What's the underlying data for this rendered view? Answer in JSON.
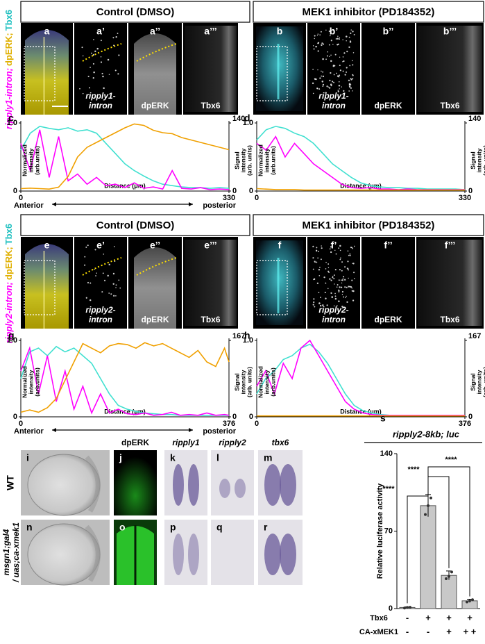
{
  "figure": {
    "headers": [
      "Control (DMSO)",
      "MEK1 inhibitor (PD184352)",
      "Control (DMSO)",
      "MEK1 inhibitor (PD184352)"
    ],
    "stain_labels": [
      [
        "ripply1-intron;",
        "dpERK;",
        "Tbx6"
      ],
      [
        "ripply2-intron;",
        "dpERK;",
        "Tbx6"
      ]
    ],
    "image_panels": [
      {
        "label": "a",
        "caption": []
      },
      {
        "label": "a’",
        "caption": [
          "ripply1-",
          "intron"
        ]
      },
      {
        "label": "a’’",
        "caption": [
          "dpERK"
        ]
      },
      {
        "label": "a’’’",
        "caption": [
          "Tbx6"
        ]
      },
      {
        "label": "b",
        "caption": []
      },
      {
        "label": "b’",
        "caption": [
          "ripply1-",
          "intron"
        ]
      },
      {
        "label": "b’’",
        "caption": [
          "dpERK"
        ]
      },
      {
        "label": "b’’’",
        "caption": [
          "Tbx6"
        ]
      },
      {
        "label": "e",
        "caption": []
      },
      {
        "label": "e’",
        "caption": [
          "ripply2-",
          "intron"
        ]
      },
      {
        "label": "e’’",
        "caption": [
          "dpERK"
        ]
      },
      {
        "label": "e’’’",
        "caption": [
          "Tbx6"
        ]
      },
      {
        "label": "f",
        "caption": []
      },
      {
        "label": "f’",
        "caption": [
          "ripply2-",
          "intron"
        ]
      },
      {
        "label": "f’’",
        "caption": [
          "dpERK"
        ]
      },
      {
        "label": "f’’’",
        "caption": [
          "Tbx6"
        ]
      }
    ],
    "bottom_panels": [
      "i",
      "j",
      "k",
      "l",
      "m",
      "n",
      "o",
      "p",
      "q",
      "r"
    ],
    "column_labels": [
      "dpERK",
      "ripply1",
      "ripply2",
      "tbx6"
    ],
    "row_labels": [
      [
        "WT"
      ],
      [
        "msgn1;gal4",
        "/ uas;ca-xmek1"
      ]
    ],
    "chart_labels": [
      "c",
      "d",
      "g",
      "h",
      "s"
    ]
  },
  "chart_data": [
    {
      "type": "line",
      "xlabel": "Distance (μm)",
      "ylabel": [
        "Normalized",
        "intensity",
        "(arb.units)"
      ],
      "y2label": [
        "Signal",
        "intensity",
        "(arb. units)"
      ],
      "annotations": [
        "Anterior",
        "posterior"
      ],
      "x": [
        0,
        15,
        30,
        45,
        60,
        75,
        90,
        105,
        120,
        135,
        150,
        165,
        180,
        195,
        210,
        225,
        240,
        255,
        270,
        285,
        300,
        315,
        330
      ],
      "xlim": [
        0,
        330
      ],
      "xticks": [
        0,
        330
      ],
      "ylim": [
        0,
        1
      ],
      "yticks": [
        0,
        {
          "value": 1,
          "label": "1.0"
        }
      ],
      "y2lim": [
        0,
        140
      ],
      "y2ticks": [
        0,
        140
      ],
      "series": [
        {
          "color": "#40e0d0",
          "values": [
            0.6,
            0.85,
            0.95,
            0.92,
            0.9,
            0.93,
            0.88,
            0.9,
            0.85,
            0.7,
            0.55,
            0.4,
            0.3,
            0.22,
            0.15,
            0.1,
            0.08,
            0.06,
            0.05,
            0.05,
            0.04,
            0.05,
            0.04
          ]
        },
        {
          "color": "#ff00ff",
          "values": [
            0.7,
            0.3,
            0.9,
            0.2,
            0.8,
            0.15,
            0.25,
            0.1,
            0.2,
            0.08,
            0.1,
            0.05,
            0.12,
            0.04,
            0.06,
            0.03,
            0.3,
            0.04,
            0.03,
            0.05,
            0.02,
            0.03,
            0.02
          ]
        },
        {
          "color": "#f0a000",
          "axis": "y2",
          "values": [
            5,
            6,
            5,
            4,
            8,
            30,
            70,
            90,
            100,
            110,
            120,
            130,
            138,
            135,
            125,
            120,
            118,
            110,
            105,
            100,
            95,
            90,
            85
          ]
        }
      ]
    },
    {
      "type": "line",
      "xlabel": "Distance (μm)",
      "ylabel": [
        "Normalized",
        "intensity",
        "(arb.units)"
      ],
      "y2label": [
        "Signal",
        "intensity",
        "(arb. units)"
      ],
      "x": [
        0,
        15,
        30,
        45,
        60,
        75,
        90,
        105,
        120,
        135,
        150,
        165,
        180,
        195,
        210,
        225,
        240,
        255,
        270,
        285,
        300,
        315,
        330
      ],
      "xlim": [
        0,
        330
      ],
      "xticks": [
        0,
        330
      ],
      "ylim": [
        0,
        1
      ],
      "yticks": [
        0,
        {
          "value": 1,
          "label": "1.0"
        }
      ],
      "y2lim": [
        0,
        140
      ],
      "y2ticks": [
        0,
        140
      ],
      "series": [
        {
          "color": "#40e0d0",
          "values": [
            0.75,
            0.9,
            0.95,
            0.92,
            0.85,
            0.8,
            0.7,
            0.55,
            0.4,
            0.3,
            0.2,
            0.12,
            0.08,
            0.06,
            0.05,
            0.05,
            0.04,
            0.04,
            0.03,
            0.03,
            0.03,
            0.03,
            0.02
          ]
        },
        {
          "color": "#ff00ff",
          "values": [
            0.7,
            0.6,
            0.8,
            0.5,
            0.7,
            0.55,
            0.4,
            0.3,
            0.2,
            0.1,
            0.05,
            0.04,
            0.05,
            0.03,
            0.03,
            0.02,
            0.03,
            0.02,
            0.02,
            0.02,
            0.02,
            0.02,
            0.02
          ]
        },
        {
          "color": "#f0a000",
          "axis": "y2",
          "values": [
            5,
            4,
            3,
            3,
            3,
            2,
            2,
            2,
            2,
            2,
            2,
            2,
            2,
            2,
            2,
            2,
            2,
            2,
            2,
            2,
            2,
            2,
            2
          ]
        }
      ]
    },
    {
      "type": "line",
      "xlabel": "Distance (μm)",
      "ylabel": [
        "Normalized",
        "intensity",
        "(arb.units)"
      ],
      "y2label": [
        "Signal",
        "intensity",
        "(arb. units)"
      ],
      "annotations": [
        "Anterior",
        "posterior"
      ],
      "x": [
        0,
        16,
        32,
        48,
        64,
        80,
        96,
        112,
        128,
        144,
        160,
        176,
        192,
        208,
        224,
        240,
        256,
        272,
        288,
        304,
        320,
        336,
        352,
        368,
        376
      ],
      "xlim": [
        0,
        376
      ],
      "xticks": [
        0,
        376
      ],
      "ylim": [
        0,
        1
      ],
      "yticks": [
        0,
        {
          "value": 1,
          "label": "1.0"
        }
      ],
      "y2lim": [
        0,
        167
      ],
      "y2ticks": [
        0,
        167
      ],
      "series": [
        {
          "color": "#40e0d0",
          "values": [
            0.5,
            0.85,
            0.9,
            0.8,
            0.92,
            0.85,
            0.9,
            0.8,
            0.7,
            0.5,
            0.3,
            0.15,
            0.1,
            0.07,
            0.05,
            0.04,
            0.03,
            0.03,
            0.02,
            0.02,
            0.02,
            0.02,
            0.02,
            0.02,
            0.02
          ]
        },
        {
          "color": "#ff00ff",
          "values": [
            0.6,
            0.9,
            0.3,
            0.8,
            0.2,
            0.6,
            0.1,
            0.4,
            0.05,
            0.3,
            0.05,
            0.1,
            0.04,
            0.03,
            0.05,
            0.02,
            0.03,
            0.06,
            0.02,
            0.03,
            0.02,
            0.05,
            0.02,
            0.03,
            0.02
          ]
        },
        {
          "color": "#f0a000",
          "axis": "y2",
          "values": [
            10,
            15,
            10,
            20,
            40,
            80,
            120,
            160,
            150,
            140,
            155,
            160,
            158,
            150,
            162,
            155,
            160,
            150,
            140,
            130,
            145,
            120,
            110,
            150,
            120
          ]
        }
      ]
    },
    {
      "type": "line",
      "xlabel": "Distance (μm)",
      "ylabel": [
        "Normalized",
        "intensity",
        "(arb.units)"
      ],
      "y2label": [
        "Signal",
        "intensity",
        "(arb. units)"
      ],
      "x": [
        0,
        16,
        32,
        48,
        64,
        80,
        96,
        112,
        128,
        144,
        160,
        176,
        192,
        208,
        224,
        240,
        256,
        272,
        288,
        304,
        320,
        336,
        352,
        368,
        376
      ],
      "xlim": [
        0,
        376
      ],
      "xticks": [
        0,
        376
      ],
      "ylim": [
        0,
        1
      ],
      "yticks": [
        0,
        {
          "value": 1,
          "label": "1.0"
        }
      ],
      "y2lim": [
        0,
        167
      ],
      "y2ticks": [
        0,
        167
      ],
      "series": [
        {
          "color": "#40e0d0",
          "values": [
            0.3,
            0.5,
            0.6,
            0.75,
            0.8,
            0.9,
            0.95,
            0.85,
            0.7,
            0.5,
            0.3,
            0.15,
            0.08,
            0.05,
            0.03,
            0.02,
            0.02,
            0.02,
            0.02,
            0.02,
            0.02,
            0.02,
            0.02,
            0.02,
            0.02
          ]
        },
        {
          "color": "#ff00ff",
          "values": [
            0.4,
            0.6,
            0.3,
            0.7,
            0.5,
            0.9,
            1,
            0.8,
            0.6,
            0.4,
            0.2,
            0.1,
            0.05,
            0.03,
            0.02,
            0.02,
            0.02,
            0.02,
            0.02,
            0.02,
            0.02,
            0.02,
            0.02,
            0.02,
            0.02
          ]
        },
        {
          "color": "#f0a000",
          "axis": "y2",
          "values": [
            2,
            2,
            2,
            2,
            2,
            2,
            2,
            2,
            2,
            2,
            2,
            2,
            2,
            2,
            2,
            2,
            2,
            2,
            2,
            2,
            2,
            2,
            2,
            2,
            2
          ]
        }
      ]
    },
    {
      "type": "bar",
      "title": "ripply2-8kb; luc",
      "ylabel": "Relative luciferase activity",
      "color": "#c8c8c8",
      "values": [
        1,
        93,
        30,
        7
      ],
      "errors": [
        0.5,
        10,
        4,
        1.5
      ],
      "points": [
        [
          0.5,
          1,
          1.2
        ],
        [
          85,
          93,
          100
        ],
        [
          27,
          29,
          33
        ],
        [
          6,
          7,
          8
        ]
      ],
      "ylim": [
        0,
        140
      ],
      "yticks": [
        0,
        70,
        140
      ],
      "significance": [
        "****",
        "****",
        "****"
      ],
      "conditions": [
        {
          "label": "Tbx6",
          "values": [
            "-",
            "+",
            "+",
            "+"
          ]
        },
        {
          "label": "CA-xMEK1",
          "values": [
            "-",
            "-",
            "+",
            "+ +"
          ]
        }
      ]
    }
  ]
}
